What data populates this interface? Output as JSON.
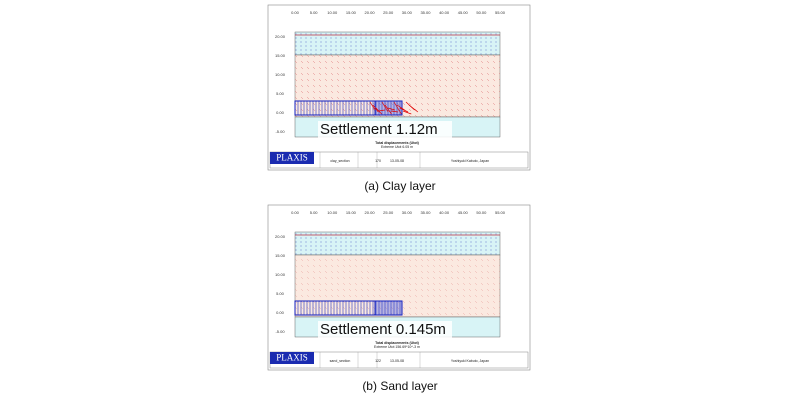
{
  "panels": [
    {
      "top_ticks": [
        "0.00",
        "5.00",
        "10.00",
        "15.00",
        "20.00",
        "25.00",
        "30.00",
        "35.00",
        "40.00",
        "45.00",
        "50.00",
        "55.00"
      ],
      "left_ticks": [
        "20.00",
        "15.00",
        "10.00",
        "5.00",
        "0.00",
        "-5.00"
      ],
      "settlement": "Settlement 1.12m",
      "plot_title": "Total displacements (Utot)",
      "extreme": "Extreme Utot 6.05 m",
      "logo": "PLAXIS",
      "footer": [
        "clay_section",
        "170",
        "13-05-08",
        "Yoshiyuki Kabuto, Japan"
      ],
      "caption": "(a)  Clay  layer"
    },
    {
      "top_ticks": [
        "0.00",
        "5.00",
        "10.00",
        "15.00",
        "20.00",
        "25.00",
        "30.00",
        "35.00",
        "40.00",
        "45.00",
        "50.00",
        "55.00"
      ],
      "left_ticks": [
        "20.00",
        "15.00",
        "10.00",
        "5.00",
        "0.00",
        "-5.00"
      ],
      "settlement": "Settlement 0.145m",
      "plot_title": "Total displacements (Utot)",
      "extreme": "Extreme Utot 156.69*10^-3 m",
      "logo": "PLAXIS",
      "footer": [
        "sand_section",
        "122",
        "13-05-08",
        "Yoshiyuki Kabuto, Japan"
      ],
      "caption": "(b)  Sand  layer"
    }
  ]
}
